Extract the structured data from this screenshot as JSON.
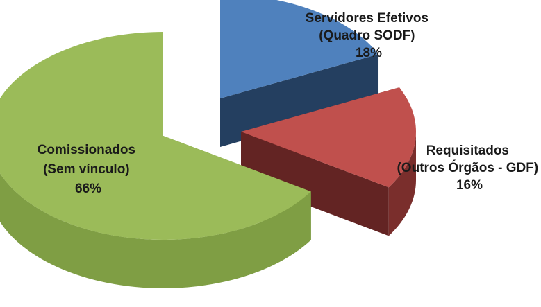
{
  "chart_data": {
    "type": "pie",
    "style": "3d-exploded",
    "legend": "none",
    "slices": [
      {
        "label_lines": [
          "Servidores Efetivos",
          "(Quadro SODF)"
        ],
        "percent_label": "18%",
        "value": 18,
        "colors": {
          "top": "#4F81BD",
          "side": "#243F60",
          "outer": "#2C4D74"
        }
      },
      {
        "label_lines": [
          "Requisitados",
          "(Outros Órgãos - GDF)"
        ],
        "percent_label": "16%",
        "value": 16,
        "colors": {
          "top": "#C0504D",
          "side": "#632423",
          "outer": "#7A2E2C"
        }
      },
      {
        "label_lines": [
          "Comissionados",
          "(Sem vínculo)"
        ],
        "percent_label": "66%",
        "value": 66,
        "colors": {
          "top": "#9BBB59",
          "side": "#6E8B35",
          "outer": "#7F9E44"
        }
      }
    ]
  }
}
